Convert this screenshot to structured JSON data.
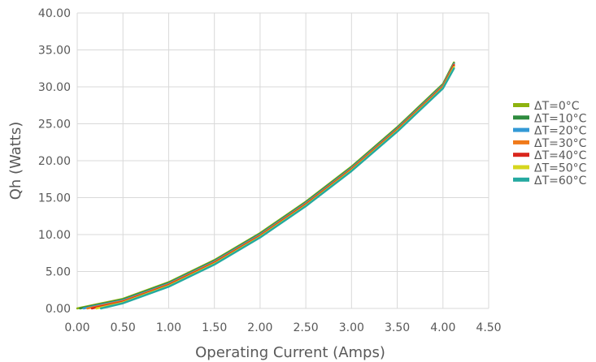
{
  "chart_data": {
    "type": "line",
    "title": "",
    "xlabel": "Operating Current (Amps)",
    "ylabel": "Qh (Watts)",
    "xlim": [
      0,
      4.5
    ],
    "ylim": [
      0,
      40
    ],
    "x_ticks": [
      "0.00",
      "0.50",
      "1.00",
      "1.50",
      "2.00",
      "2.50",
      "3.00",
      "3.50",
      "4.00",
      "4.50"
    ],
    "y_ticks": [
      "0.00",
      "5.00",
      "10.00",
      "15.00",
      "20.00",
      "25.00",
      "30.00",
      "35.00",
      "40.00"
    ],
    "grid": true,
    "legend_position": "right",
    "series": [
      {
        "name": "ΔT=0°C",
        "color": "#8db30f",
        "points": [
          [
            0.0,
            0.0
          ],
          [
            0.5,
            1.3
          ],
          [
            1.0,
            3.55
          ],
          [
            1.5,
            6.55
          ],
          [
            2.0,
            10.2
          ],
          [
            2.5,
            14.45
          ],
          [
            3.0,
            19.2
          ],
          [
            3.5,
            24.55
          ],
          [
            4.0,
            30.4
          ],
          [
            4.12,
            33.3
          ]
        ]
      },
      {
        "name": "ΔT=10°C",
        "color": "#2e8b3e",
        "points": [
          [
            0.03,
            0.0
          ],
          [
            0.5,
            1.2
          ],
          [
            1.0,
            3.45
          ],
          [
            1.5,
            6.45
          ],
          [
            2.0,
            10.1
          ],
          [
            2.5,
            14.35
          ],
          [
            3.0,
            19.1
          ],
          [
            3.5,
            24.45
          ],
          [
            4.0,
            30.3
          ],
          [
            4.12,
            33.2
          ]
        ]
      },
      {
        "name": "ΔT=20°C",
        "color": "#3399d6",
        "points": [
          [
            0.07,
            0.0
          ],
          [
            0.5,
            1.1
          ],
          [
            1.0,
            3.35
          ],
          [
            1.5,
            6.35
          ],
          [
            2.0,
            10.0
          ],
          [
            2.5,
            14.25
          ],
          [
            3.0,
            19.0
          ],
          [
            3.5,
            24.35
          ],
          [
            4.0,
            30.2
          ],
          [
            4.12,
            33.1
          ]
        ]
      },
      {
        "name": "ΔT=30°C",
        "color": "#f07a1a",
        "points": [
          [
            0.11,
            0.0
          ],
          [
            0.5,
            1.0
          ],
          [
            1.0,
            3.25
          ],
          [
            1.5,
            6.25
          ],
          [
            2.0,
            9.9
          ],
          [
            2.5,
            14.15
          ],
          [
            3.0,
            18.9
          ],
          [
            3.5,
            24.25
          ],
          [
            4.0,
            30.1
          ],
          [
            4.12,
            33.0
          ]
        ]
      },
      {
        "name": "ΔT=40°C",
        "color": "#d9261c",
        "points": [
          [
            0.16,
            0.0
          ],
          [
            0.5,
            0.9
          ],
          [
            1.0,
            3.15
          ],
          [
            1.5,
            6.15
          ],
          [
            2.0,
            9.8
          ],
          [
            2.5,
            14.05
          ],
          [
            3.0,
            18.8
          ],
          [
            3.5,
            24.15
          ],
          [
            4.0,
            30.0
          ],
          [
            4.12,
            32.9
          ]
        ]
      },
      {
        "name": "ΔT=50°C",
        "color": "#d6d61e",
        "points": [
          [
            0.21,
            0.0
          ],
          [
            0.5,
            0.8
          ],
          [
            1.0,
            3.05
          ],
          [
            1.5,
            6.05
          ],
          [
            2.0,
            9.7
          ],
          [
            2.5,
            13.95
          ],
          [
            3.0,
            18.7
          ],
          [
            3.5,
            24.05
          ],
          [
            4.0,
            29.9
          ],
          [
            4.12,
            32.7
          ]
        ]
      },
      {
        "name": "ΔT=60°C",
        "color": "#25a9a0",
        "points": [
          [
            0.26,
            0.0
          ],
          [
            0.5,
            0.7
          ],
          [
            1.0,
            2.95
          ],
          [
            1.5,
            5.95
          ],
          [
            2.0,
            9.6
          ],
          [
            2.5,
            13.85
          ],
          [
            3.0,
            18.6
          ],
          [
            3.5,
            23.95
          ],
          [
            4.0,
            29.8
          ],
          [
            4.12,
            32.5
          ]
        ]
      }
    ]
  }
}
